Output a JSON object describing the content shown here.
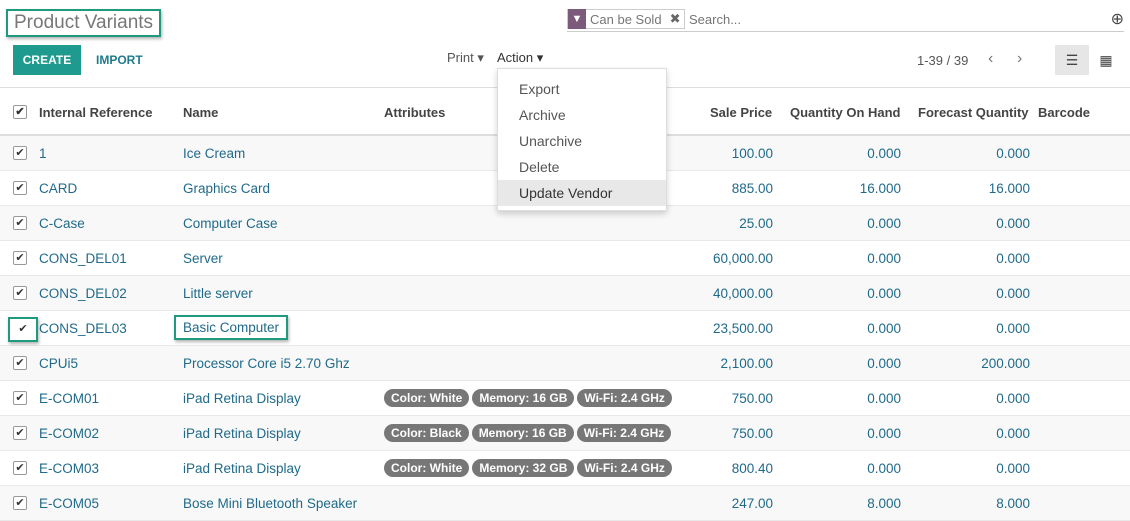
{
  "title": "Product Variants",
  "search": {
    "facet": "Can be Sold",
    "placeholder": "Search..."
  },
  "toolbar": {
    "create": "CREATE",
    "import": "IMPORT",
    "print": "Print ▾",
    "action": "Action ▾",
    "pager": "1-39 / 39"
  },
  "action_menu": [
    "Export",
    "Archive",
    "Unarchive",
    "Delete",
    "Update Vendor"
  ],
  "columns": [
    "Internal Reference",
    "Name",
    "Attributes",
    "Sale Price",
    "Quantity On Hand",
    "Forecast Quantity",
    "Barcode"
  ],
  "rows": [
    {
      "ref": "1",
      "name": "Ice Cream",
      "attrs": [],
      "price": "100.00",
      "qoh": "0.000",
      "fq": "0.000"
    },
    {
      "ref": "CARD",
      "name": "Graphics Card",
      "attrs": [],
      "price": "885.00",
      "qoh": "16.000",
      "fq": "16.000"
    },
    {
      "ref": "C-Case",
      "name": "Computer Case",
      "attrs": [],
      "price": "25.00",
      "qoh": "0.000",
      "fq": "0.000"
    },
    {
      "ref": "CONS_DEL01",
      "name": "Server",
      "attrs": [],
      "price": "60,000.00",
      "qoh": "0.000",
      "fq": "0.000"
    },
    {
      "ref": "CONS_DEL02",
      "name": "Little server",
      "attrs": [],
      "price": "40,000.00",
      "qoh": "0.000",
      "fq": "0.000"
    },
    {
      "ref": "CONS_DEL03",
      "name": "Basic Computer",
      "attrs": [],
      "price": "23,500.00",
      "qoh": "0.000",
      "fq": "0.000"
    },
    {
      "ref": "CPUi5",
      "name": "Processor Core i5 2.70 Ghz",
      "attrs": [],
      "price": "2,100.00",
      "qoh": "0.000",
      "fq": "200.000"
    },
    {
      "ref": "E-COM01",
      "name": "iPad Retina Display",
      "attrs": [
        "Color: White",
        "Memory: 16 GB",
        "Wi-Fi: 2.4 GHz"
      ],
      "price": "750.00",
      "qoh": "0.000",
      "fq": "0.000"
    },
    {
      "ref": "E-COM02",
      "name": "iPad Retina Display",
      "attrs": [
        "Color: Black",
        "Memory: 16 GB",
        "Wi-Fi: 2.4 GHz"
      ],
      "price": "750.00",
      "qoh": "0.000",
      "fq": "0.000"
    },
    {
      "ref": "E-COM03",
      "name": "iPad Retina Display",
      "attrs": [
        "Color: White",
        "Memory: 32 GB",
        "Wi-Fi: 2.4 GHz"
      ],
      "price": "800.40",
      "qoh": "0.000",
      "fq": "0.000"
    },
    {
      "ref": "E-COM05",
      "name": "Bose Mini Bluetooth Speaker",
      "attrs": [],
      "price": "247.00",
      "qoh": "8.000",
      "fq": "8.000"
    }
  ]
}
